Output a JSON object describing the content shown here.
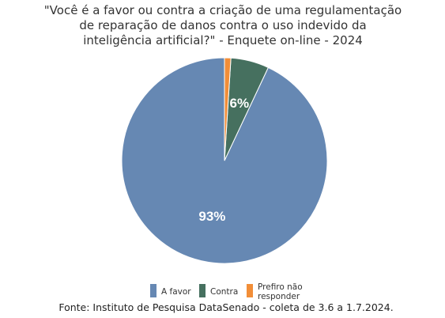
{
  "chart_data": {
    "type": "pie",
    "title_lines": [
      "\"Você é a favor ou contra a criação de uma regulamentação",
      "de reparação de danos contra o uso indevido da",
      "inteligência artificial?\" - Enquete on-line - 2024"
    ],
    "slices": [
      {
        "label": "A favor",
        "value": 93,
        "display": "93%",
        "color": "#6688b3"
      },
      {
        "label": "Contra",
        "value": 6,
        "display": "6%",
        "color": "#46705f"
      },
      {
        "label": "Prefiro não responder",
        "value": 1,
        "display": "",
        "color": "#f28e38"
      }
    ],
    "legend": {
      "placement": "bottom",
      "items": [
        {
          "lines": [
            "A favor"
          ],
          "color": "#6688b3"
        },
        {
          "lines": [
            "Contra"
          ],
          "color": "#46705f"
        },
        {
          "lines": [
            "Prefiro não",
            "responder"
          ],
          "color": "#f28e38"
        }
      ]
    },
    "source": "Fonte: Instituto de Pesquisa DataSenado - coleta de 3.6 a 1.7.2024."
  }
}
